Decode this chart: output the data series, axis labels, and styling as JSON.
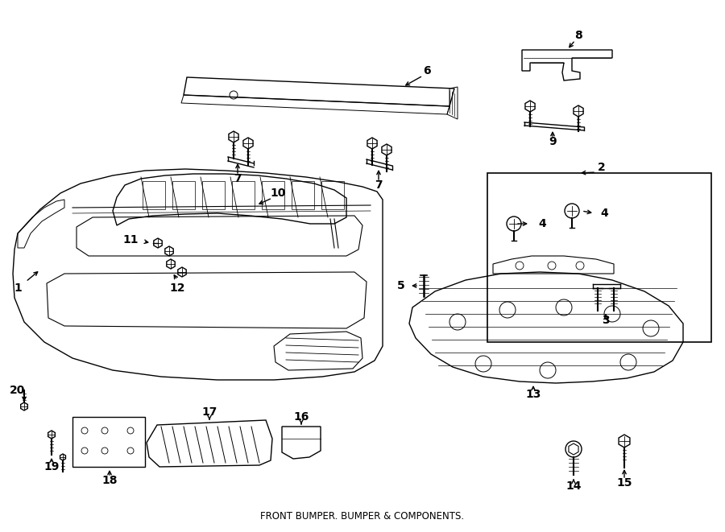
{
  "title": "FRONT BUMPER. BUMPER & COMPONENTS.",
  "bg_color": "#ffffff",
  "line_color": "#000000",
  "fig_width": 9.0,
  "fig_height": 6.61,
  "dpi": 100
}
